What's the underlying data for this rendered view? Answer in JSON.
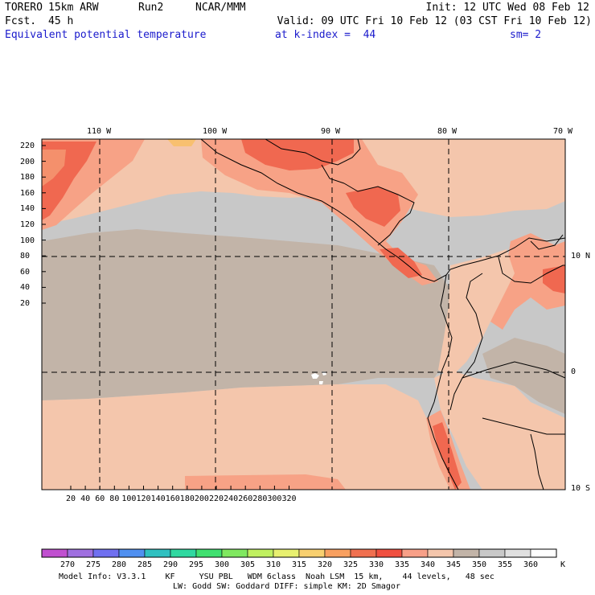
{
  "header": {
    "model": "TORERO",
    "resolution": "15km ARW",
    "run": "Run2",
    "org": "NCAR/MMM",
    "init": "Init: 12 UTC Wed 08 Feb 12",
    "fcst_label": "Fcst.",
    "fcst_value": "45 h",
    "valid": "Valid: 09 UTC Fri 10 Feb 12 (03 CST Fri 10 Feb 12)",
    "field": "Equivalent potential temperature",
    "level": "at k-index =  44",
    "smoothing": "sm= 2"
  },
  "map": {
    "lon_labels": [
      "110 W",
      "100 W",
      "90 W",
      "80 W",
      "70 W"
    ],
    "lat_labels": [
      "10 N",
      "0",
      "10 S"
    ],
    "y_ticks": [
      "220",
      "200",
      "180",
      "160",
      "140",
      "120",
      "100",
      "80",
      "60",
      "40",
      "20"
    ],
    "x_ticks": [
      "20",
      "40",
      "60",
      "80",
      "100",
      "120",
      "140",
      "160",
      "180",
      "200",
      "220",
      "240",
      "260",
      "280",
      "300",
      "320"
    ],
    "colors": {
      "water": "#c8c8c8",
      "band_345": "#c2b4a8",
      "band_340": "#f4c6ac",
      "band_335": "#f7a286",
      "band_330": "#f06850",
      "band_325": "#f4906c",
      "band_320": "#f8c070"
    }
  },
  "colorbar": {
    "labels": [
      "270",
      "275",
      "280",
      "285",
      "290",
      "295",
      "300",
      "305",
      "310",
      "315",
      "320",
      "325",
      "330",
      "335",
      "340",
      "345",
      "350",
      "355",
      "360"
    ],
    "unit": "K",
    "colors": [
      "#c050d0",
      "#a070e0",
      "#7070f0",
      "#5090f0",
      "#30c0c0",
      "#30d8a0",
      "#40e070",
      "#80e860",
      "#c0f060",
      "#e8f070",
      "#f8d070",
      "#f8a060",
      "#f07050",
      "#f05040",
      "#f8a088",
      "#f4c6ac",
      "#c2b4a8",
      "#c8c8c8",
      "#e0e0e0",
      "#ffffff"
    ]
  },
  "footer": {
    "line1": "Model Info: V3.3.1    KF     YSU PBL   WDM 6class  Noah LSM  15 km,    44 levels,   48 sec",
    "line2": "LW: Godd SW: Goddard DIFF: simple KM: 2D Smagor"
  }
}
